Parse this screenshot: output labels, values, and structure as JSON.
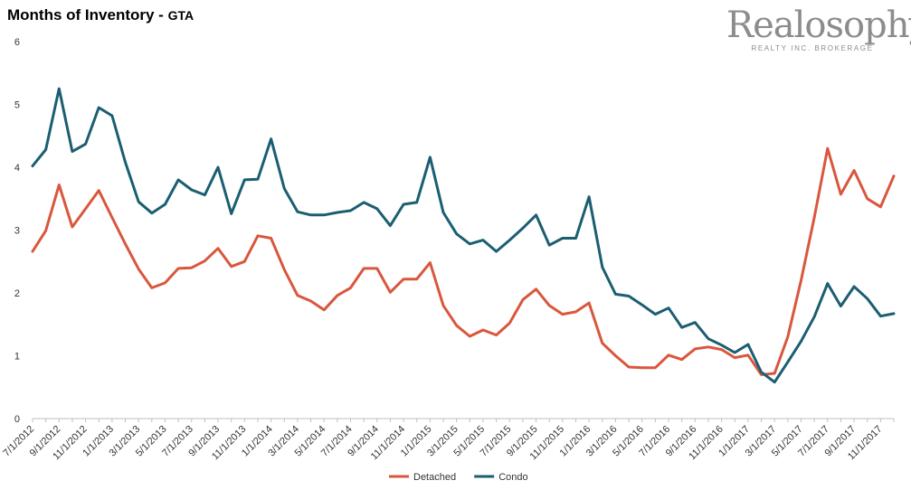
{
  "chart_data": {
    "type": "line",
    "title": "Months of Inventory",
    "subtitle": "GTA",
    "title_separator": " - ",
    "xlabel": "",
    "ylabel": "",
    "ylim": [
      0,
      6
    ],
    "yticks": [
      0,
      1,
      2,
      3,
      4,
      5,
      6
    ],
    "grid": false,
    "legend_position": "bottom",
    "x": [
      "7/1/2012",
      "8/1/2012",
      "9/1/2012",
      "10/1/2012",
      "11/1/2012",
      "12/1/2012",
      "1/1/2013",
      "2/1/2013",
      "3/1/2013",
      "4/1/2013",
      "5/1/2013",
      "6/1/2013",
      "7/1/2013",
      "8/1/2013",
      "9/1/2013",
      "10/1/2013",
      "11/1/2013",
      "12/1/2013",
      "1/1/2014",
      "2/1/2014",
      "3/1/2014",
      "4/1/2014",
      "5/1/2014",
      "6/1/2014",
      "7/1/2014",
      "8/1/2014",
      "9/1/2014",
      "10/1/2014",
      "11/1/2014",
      "12/1/2014",
      "1/1/2015",
      "2/1/2015",
      "3/1/2015",
      "4/1/2015",
      "5/1/2015",
      "6/1/2015",
      "7/1/2015",
      "8/1/2015",
      "9/1/2015",
      "10/1/2015",
      "11/1/2015",
      "12/1/2015",
      "1/1/2016",
      "2/1/2016",
      "3/1/2016",
      "4/1/2016",
      "5/1/2016",
      "6/1/2016",
      "7/1/2016",
      "8/1/2016",
      "9/1/2016",
      "10/1/2016",
      "11/1/2016",
      "12/1/2016",
      "1/1/2017",
      "2/1/2017",
      "3/1/2017",
      "4/1/2017",
      "5/1/2017",
      "6/1/2017",
      "7/1/2017",
      "8/1/2017",
      "9/1/2017",
      "10/1/2017",
      "11/1/2017",
      "12/1/2017"
    ],
    "x_tick_labels": [
      "7/1/2012",
      "9/1/2012",
      "11/1/2012",
      "1/1/2013",
      "3/1/2013",
      "5/1/2013",
      "7/1/2013",
      "9/1/2013",
      "11/1/2013",
      "1/1/2014",
      "3/1/2014",
      "5/1/2014",
      "7/1/2014",
      "9/1/2014",
      "11/1/2014",
      "1/1/2015",
      "3/1/2015",
      "5/1/2015",
      "7/1/2015",
      "9/1/2015",
      "11/1/2015",
      "1/1/2016",
      "3/1/2016",
      "5/1/2016",
      "7/1/2016",
      "9/1/2016",
      "11/1/2016",
      "1/1/2017",
      "3/1/2017",
      "5/1/2017",
      "7/1/2017",
      "9/1/2017",
      "11/1/2017"
    ],
    "series": [
      {
        "name": "Detached",
        "color": "#d9573d",
        "values": [
          2.66,
          2.99,
          3.72,
          3.05,
          3.34,
          3.63,
          3.2,
          2.78,
          2.38,
          2.08,
          2.16,
          2.39,
          2.4,
          2.51,
          2.71,
          2.42,
          2.5,
          2.91,
          2.87,
          2.37,
          1.96,
          1.87,
          1.73,
          1.96,
          2.08,
          2.39,
          2.39,
          2.01,
          2.22,
          2.22,
          2.48,
          1.8,
          1.48,
          1.31,
          1.41,
          1.33,
          1.52,
          1.89,
          2.06,
          1.8,
          1.66,
          1.7,
          1.84,
          1.2,
          1.0,
          0.82,
          0.81,
          0.81,
          1.01,
          0.94,
          1.11,
          1.14,
          1.1,
          0.97,
          1.01,
          0.7,
          0.72,
          1.3,
          2.2,
          3.2,
          4.3,
          3.57,
          3.95,
          3.5,
          3.37,
          3.86
        ]
      },
      {
        "name": "Condo",
        "color": "#1b5e72",
        "values": [
          4.02,
          4.28,
          5.25,
          4.25,
          4.37,
          4.95,
          4.82,
          4.08,
          3.45,
          3.27,
          3.41,
          3.8,
          3.64,
          3.56,
          4.0,
          3.26,
          3.8,
          3.81,
          4.45,
          3.66,
          3.29,
          3.24,
          3.24,
          3.28,
          3.31,
          3.44,
          3.34,
          3.07,
          3.41,
          3.44,
          4.16,
          3.28,
          2.94,
          2.78,
          2.84,
          2.66,
          2.84,
          3.03,
          3.24,
          2.76,
          2.87,
          2.87,
          3.53,
          2.41,
          1.98,
          1.95,
          1.81,
          1.66,
          1.76,
          1.45,
          1.53,
          1.27,
          1.17,
          1.05,
          1.18,
          0.74,
          0.58,
          0.9,
          1.23,
          1.62,
          2.15,
          1.79,
          2.1,
          1.91,
          1.63,
          1.67
        ]
      }
    ],
    "colors": {
      "axis": "#bfbfbf",
      "text": "#333333"
    }
  },
  "logo": {
    "wordmark": "Realosophy",
    "tagline": "REALTY INC. BROKERAGE"
  }
}
